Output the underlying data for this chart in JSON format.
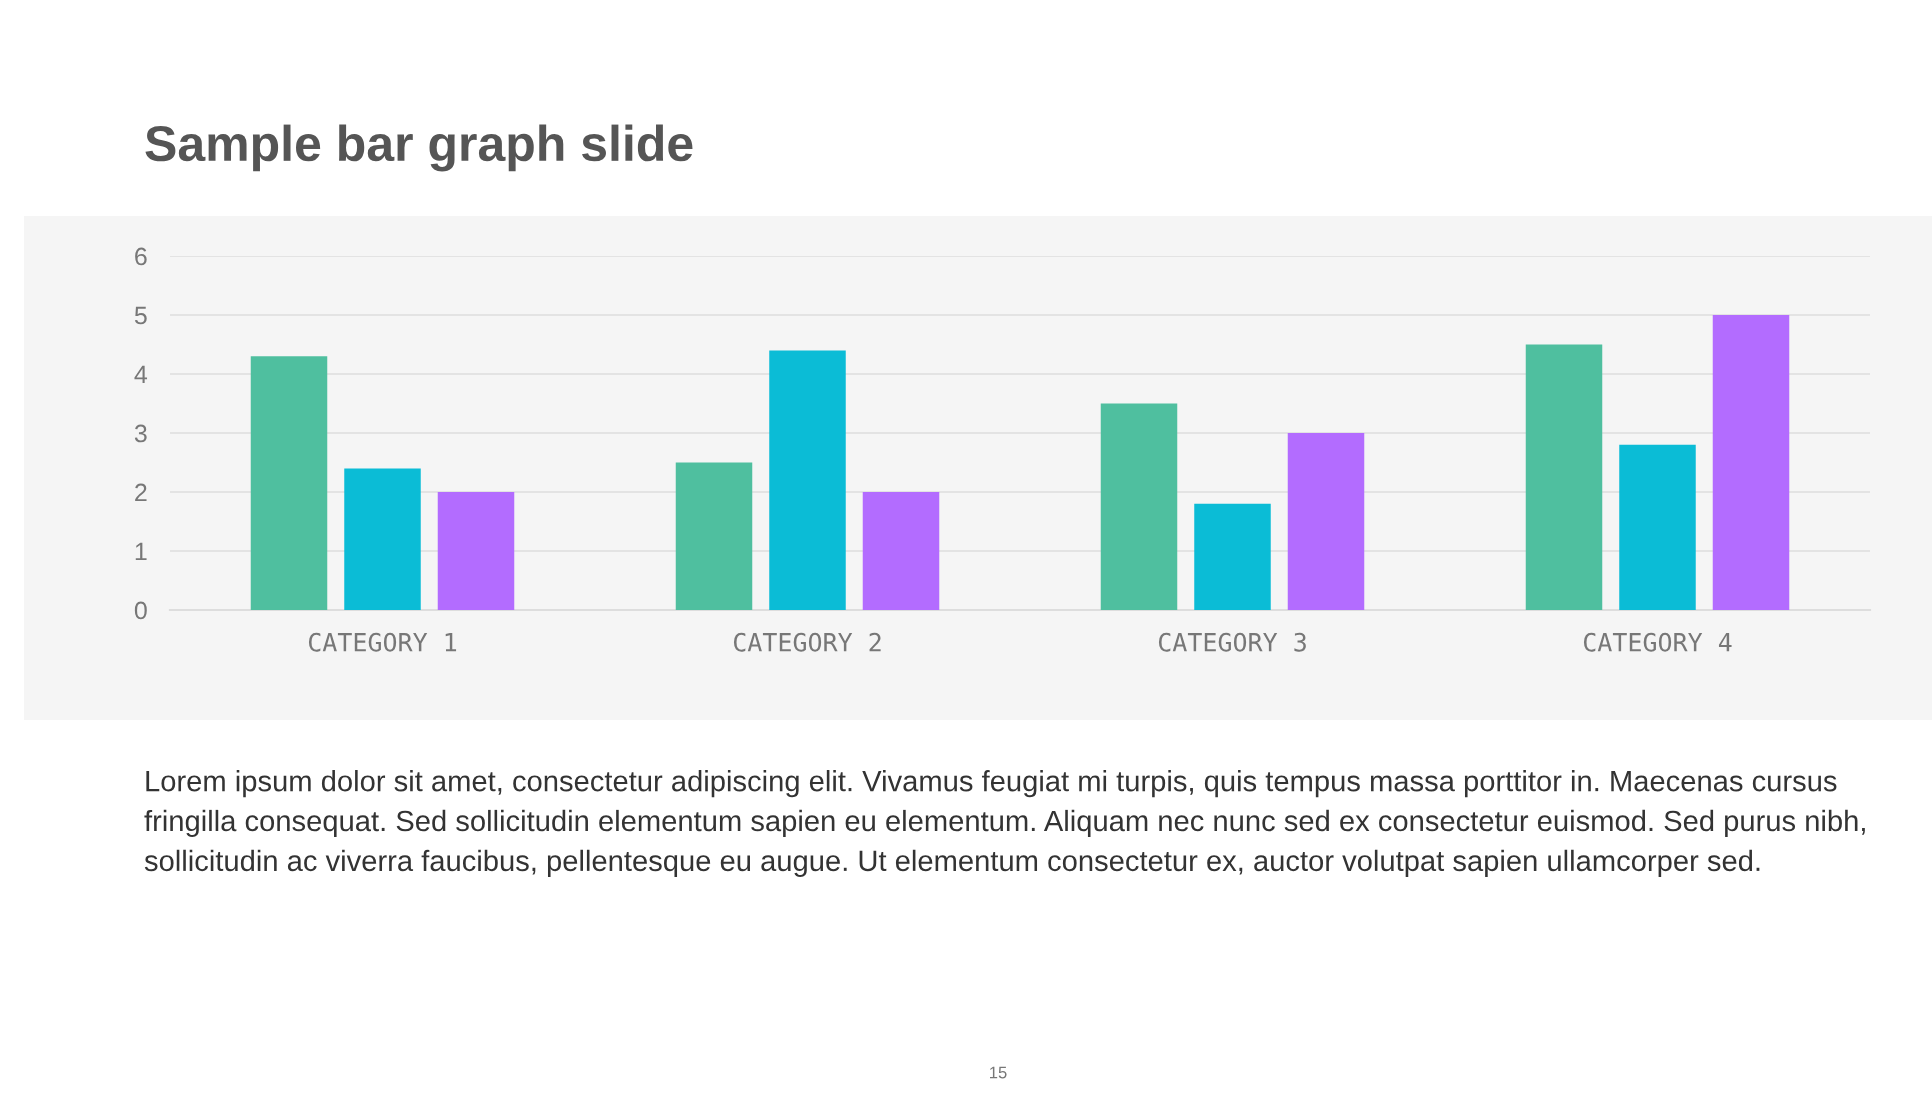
{
  "chart_data": {
    "type": "bar",
    "title": "Sample bar graph slide",
    "categories": [
      "CATEGORY 1",
      "CATEGORY 2",
      "CATEGORY 3",
      "CATEGORY 4"
    ],
    "series": [
      {
        "color": "#4fbf9f",
        "values": [
          4.3,
          2.5,
          3.5,
          4.5
        ]
      },
      {
        "color": "#0bbcd6",
        "values": [
          2.4,
          4.4,
          1.8,
          2.8
        ]
      },
      {
        "color": "#b36cff",
        "values": [
          2,
          2,
          3,
          5
        ]
      }
    ],
    "ylim": [
      0,
      6
    ],
    "yticks": [
      0,
      1,
      2,
      3,
      4,
      5,
      6
    ],
    "grid": "y",
    "annotations": [
      "Lorem ipsum dolor sit amet, consectetur adipiscing elit. Vivamus feugiat mi turpis, quis tempus massa porttitor in. Maecenas cursus fringilla consequat. Sed sollicitudin elementum sapien eu elementum. Aliquam nec nunc sed ex consectetur euismod. Sed purus nibh, sollicitudin ac viverra faucibus, pellentesque eu augue. Ut elementum consectetur ex, auctor volutpat sapien ullamcorper sed.",
      "15"
    ]
  }
}
